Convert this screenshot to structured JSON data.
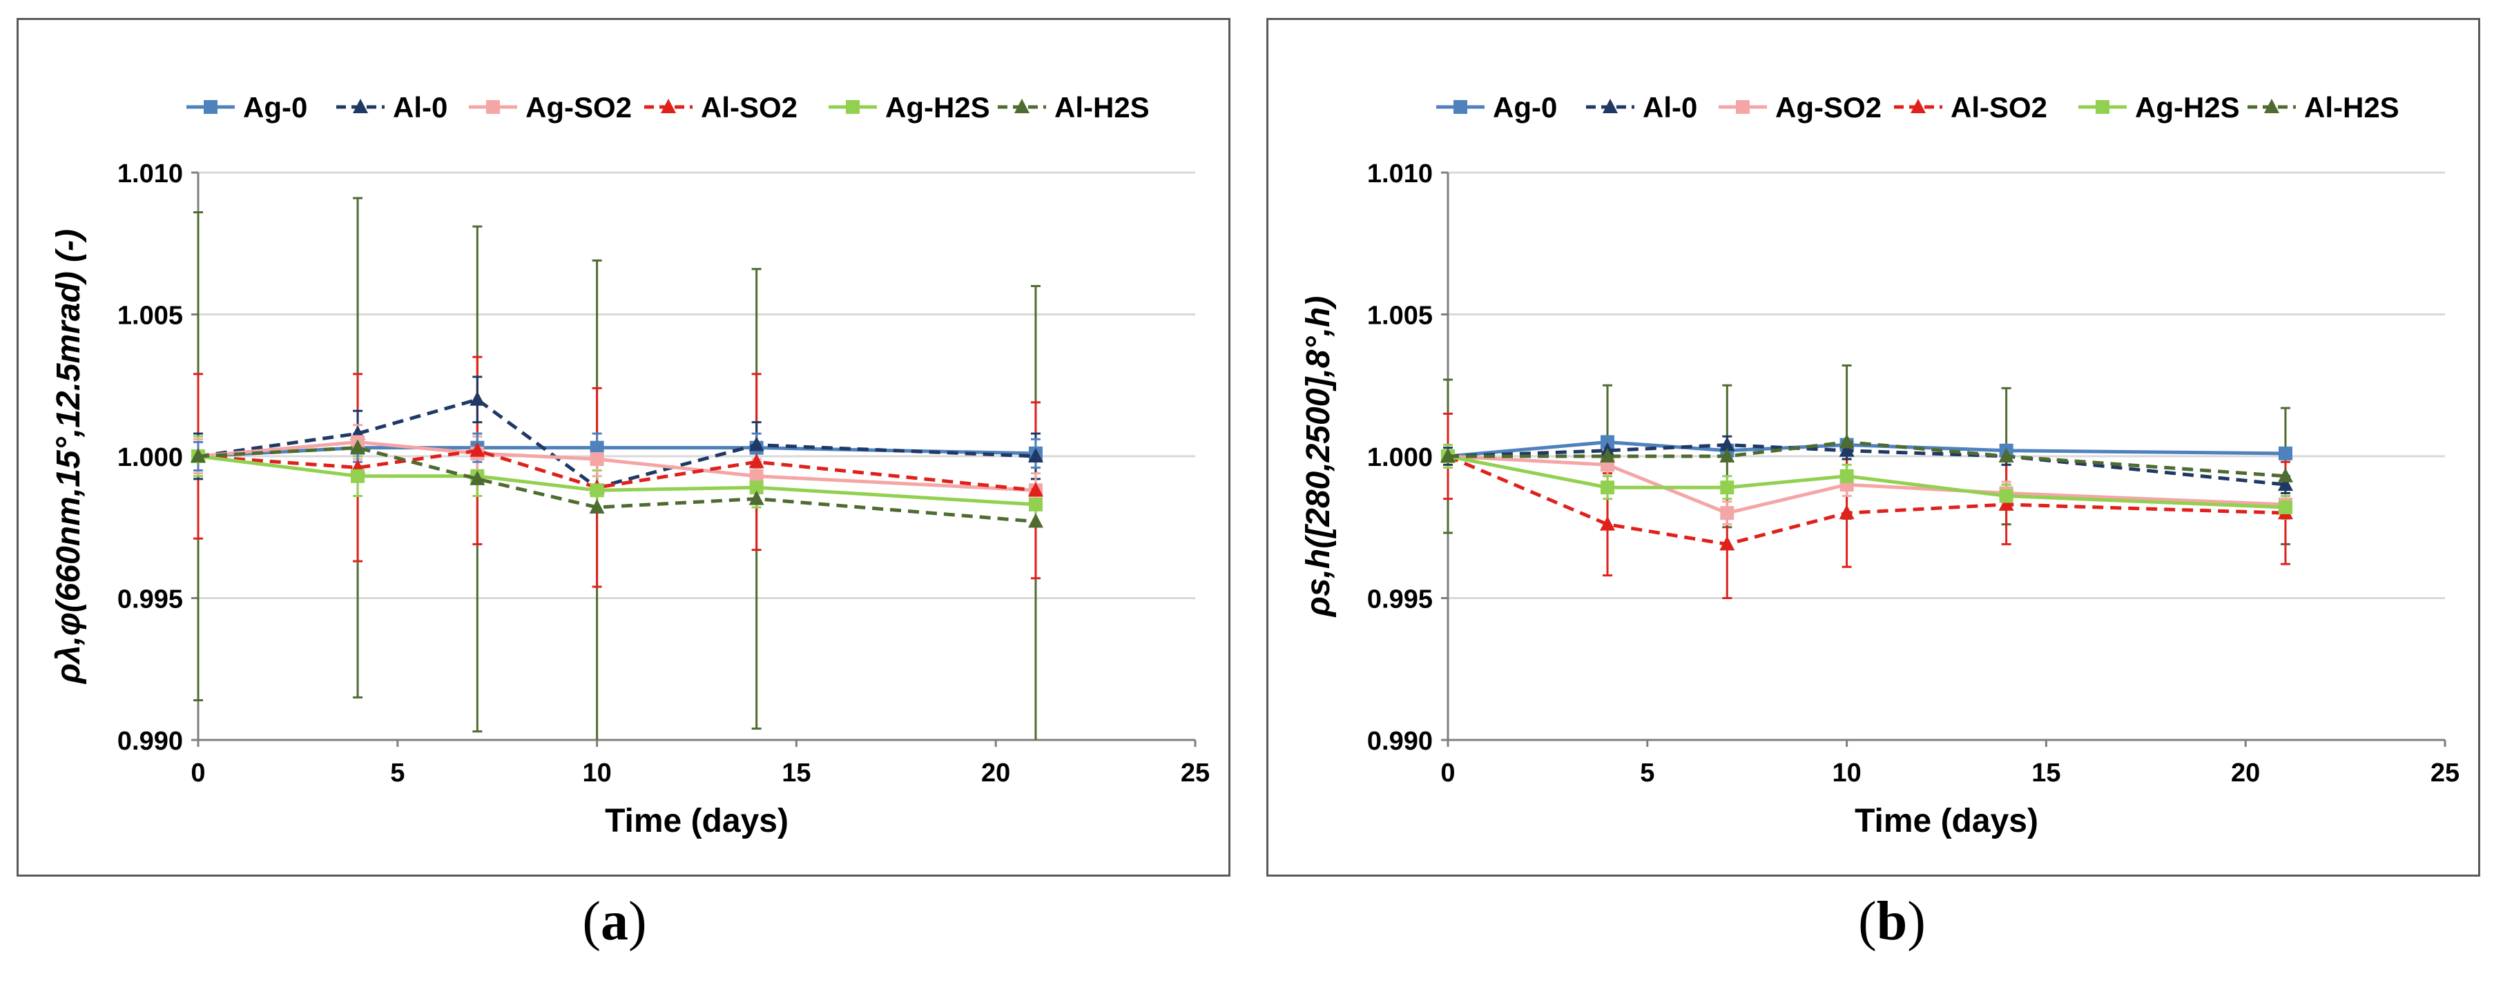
{
  "chart_data": [
    {
      "type": "line",
      "caption_open": "(",
      "caption_letter": "a",
      "caption_close": ")",
      "xlabel": "Time (days)",
      "ylabel": "ρλ,φ(660nm,15°,12.5mrad) (-)",
      "xlim": [
        0,
        25
      ],
      "ylim": [
        0.99,
        1.01
      ],
      "x_ticks": [
        "0",
        "5",
        "10",
        "15",
        "20",
        "25"
      ],
      "y_ticks": [
        "0.990",
        "0.995",
        "1.000",
        "1.005",
        "1.010"
      ],
      "grid": "horizontal",
      "legend_position": "top",
      "x": [
        0,
        4,
        7,
        10,
        14,
        21
      ],
      "series": [
        {
          "name": "Ag-0",
          "color": "#4F81BD",
          "dash": "solid",
          "marker": "square",
          "values": [
            1.0,
            1.0003,
            1.0003,
            1.0003,
            1.0003,
            1.0001
          ],
          "error": [
            0.0005,
            0.0005,
            0.0005,
            0.0005,
            0.0005,
            0.0005
          ]
        },
        {
          "name": "Al-0",
          "color": "#1F3864",
          "dash": "dashed",
          "marker": "triangle",
          "values": [
            1.0,
            1.0008,
            1.002,
            0.9989,
            1.0004,
            1.0
          ],
          "error": [
            0.0008,
            0.0008,
            0.0008,
            0.0008,
            0.0008,
            0.0008
          ]
        },
        {
          "name": "Ag-SO2",
          "color": "#F4A6A6",
          "dash": "solid",
          "marker": "square",
          "values": [
            1.0,
            1.0005,
            1.0001,
            0.9999,
            0.9993,
            0.9988
          ],
          "error": [
            0.0006,
            0.0006,
            0.0006,
            0.0006,
            0.0006,
            0.0006
          ]
        },
        {
          "name": "Al-SO2",
          "color": "#E0201B",
          "dash": "dashed",
          "marker": "triangle",
          "values": [
            1.0,
            0.9996,
            1.0002,
            0.9989,
            0.9998,
            0.9988
          ],
          "error": [
            0.0029,
            0.0033,
            0.0033,
            0.0035,
            0.0031,
            0.0031
          ]
        },
        {
          "name": "Ag-H2S",
          "color": "#92D050",
          "dash": "solid",
          "marker": "square",
          "values": [
            1.0,
            0.9993,
            0.9993,
            0.9988,
            0.9989,
            0.9983
          ],
          "error": [
            0.0007,
            0.0007,
            0.0007,
            0.0007,
            0.0007,
            0.0007
          ]
        },
        {
          "name": "Al-H2S",
          "color": "#4E6B30",
          "dash": "dashed",
          "marker": "triangle",
          "values": [
            1.0,
            1.0003,
            0.9992,
            0.9982,
            0.9985,
            0.9977
          ],
          "error": [
            0.0086,
            0.0088,
            0.0089,
            0.0087,
            0.0081,
            0.0083
          ]
        }
      ]
    },
    {
      "type": "line",
      "caption_open": "(",
      "caption_letter": "b",
      "caption_close": ")",
      "xlabel": "Time (days)",
      "ylabel": "ρs,h([280,2500],8°,h)",
      "xlim": [
        0,
        25
      ],
      "ylim": [
        0.99,
        1.01
      ],
      "x_ticks": [
        "0",
        "5",
        "10",
        "15",
        "20",
        "25"
      ],
      "y_ticks": [
        "0.990",
        "0.995",
        "1.000",
        "1.005",
        "1.010"
      ],
      "grid": "horizontal",
      "legend_position": "top",
      "x": [
        0,
        4,
        7,
        10,
        14,
        21
      ],
      "series": [
        {
          "name": "Ag-0",
          "color": "#4F81BD",
          "dash": "solid",
          "marker": "square",
          "values": [
            1.0,
            1.0005,
            1.0002,
            1.0004,
            1.0002,
            1.0001
          ],
          "error": [
            0.0002,
            0.0002,
            0.0002,
            0.0002,
            0.0002,
            0.0002
          ]
        },
        {
          "name": "Al-0",
          "color": "#1F3864",
          "dash": "dashed",
          "marker": "triangle",
          "values": [
            1.0,
            1.0002,
            1.0004,
            1.0002,
            1.0,
            0.999
          ],
          "error": [
            0.0003,
            0.0003,
            0.0003,
            0.0003,
            0.0003,
            0.0003
          ]
        },
        {
          "name": "Ag-SO2",
          "color": "#F4A6A6",
          "dash": "solid",
          "marker": "square",
          "values": [
            1.0,
            0.9997,
            0.998,
            0.999,
            0.9987,
            0.9983
          ],
          "error": [
            0.0004,
            0.0004,
            0.0004,
            0.0004,
            0.0004,
            0.0004
          ]
        },
        {
          "name": "Al-SO2",
          "color": "#E0201B",
          "dash": "dashed",
          "marker": "triangle",
          "values": [
            1.0,
            0.9976,
            0.9969,
            0.998,
            0.9983,
            0.998
          ],
          "error": [
            0.0015,
            0.0018,
            0.0019,
            0.0019,
            0.0014,
            0.0018
          ]
        },
        {
          "name": "Ag-H2S",
          "color": "#92D050",
          "dash": "solid",
          "marker": "square",
          "values": [
            1.0,
            0.9989,
            0.9989,
            0.9993,
            0.9986,
            0.9982
          ],
          "error": [
            0.0004,
            0.0004,
            0.0004,
            0.0004,
            0.0004,
            0.0004
          ]
        },
        {
          "name": "Al-H2S",
          "color": "#4E6B30",
          "dash": "dashed",
          "marker": "triangle",
          "values": [
            1.0,
            1.0,
            1.0,
            1.0005,
            1.0,
            0.9993
          ],
          "error": [
            0.0027,
            0.0025,
            0.0025,
            0.0027,
            0.0024,
            0.0024
          ]
        }
      ]
    }
  ]
}
